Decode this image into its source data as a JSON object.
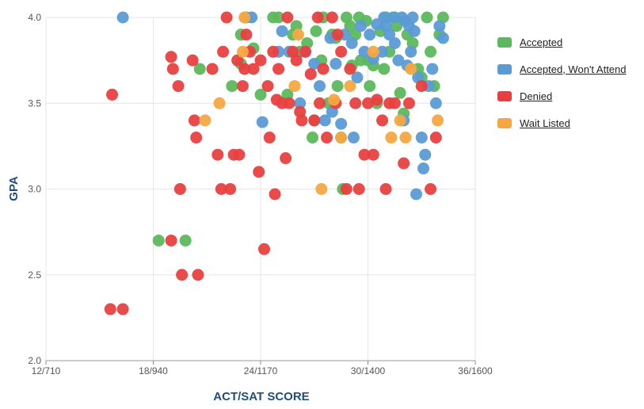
{
  "chart_data": {
    "type": "scatter",
    "title": "",
    "xlabel": "ACT/SAT SCORE",
    "ylabel": "GPA",
    "xlim": [
      12,
      36
    ],
    "ylim": [
      2.0,
      4.0
    ],
    "x_tick_labels": [
      "12/710",
      "18/940",
      "24/1170",
      "30/1400",
      "36/1600"
    ],
    "x_tick_values": [
      12,
      18,
      24,
      30,
      36
    ],
    "y_tick_labels": [
      "2.0",
      "2.5",
      "3.0",
      "3.5",
      "4.0"
    ],
    "y_tick_values": [
      2.0,
      2.5,
      3.0,
      3.5,
      4.0
    ],
    "grid": true,
    "legend_position": "right",
    "series": [
      {
        "name": "Accepted",
        "color": "#5cb85c",
        "points": [
          [
            18.3,
            2.7
          ],
          [
            19.8,
            2.7
          ],
          [
            20.6,
            3.7
          ],
          [
            22.4,
            3.6
          ],
          [
            22.9,
            3.9
          ],
          [
            22.9,
            3.73
          ],
          [
            23.2,
            4.0
          ],
          [
            23.6,
            3.82
          ],
          [
            24.0,
            3.55
          ],
          [
            24.7,
            4.0
          ],
          [
            25.0,
            4.0
          ],
          [
            25.5,
            3.55
          ],
          [
            25.8,
            3.9
          ],
          [
            26.2,
            3.8
          ],
          [
            26.6,
            3.85
          ],
          [
            26.9,
            3.3
          ],
          [
            27.1,
            3.92
          ],
          [
            27.4,
            3.75
          ],
          [
            27.5,
            4.0
          ],
          [
            27.8,
            3.5
          ],
          [
            28.2,
            3.88
          ],
          [
            28.3,
            3.6
          ],
          [
            28.5,
            3.3
          ],
          [
            28.6,
            3.0
          ],
          [
            28.8,
            4.0
          ],
          [
            29.1,
            3.72
          ],
          [
            29.3,
            3.9
          ],
          [
            29.5,
            4.0
          ],
          [
            29.6,
            3.75
          ],
          [
            29.9,
            3.98
          ],
          [
            30.0,
            3.75
          ],
          [
            30.3,
            3.72
          ],
          [
            30.5,
            3.5
          ],
          [
            30.7,
            3.92
          ],
          [
            30.9,
            3.7
          ],
          [
            31.2,
            3.8
          ],
          [
            31.5,
            4.0
          ],
          [
            31.8,
            3.56
          ],
          [
            32.0,
            3.44
          ],
          [
            32.2,
            3.9
          ],
          [
            32.5,
            3.85
          ],
          [
            32.8,
            3.7
          ],
          [
            33.0,
            3.65
          ],
          [
            33.3,
            4.0
          ],
          [
            33.5,
            3.8
          ],
          [
            33.7,
            3.6
          ],
          [
            34.0,
            3.9
          ],
          [
            34.2,
            4.0
          ],
          [
            31.6,
            3.95
          ],
          [
            28.0,
            3.9
          ],
          [
            26.0,
            3.95
          ],
          [
            30.1,
            3.6
          ],
          [
            31.0,
            4.0
          ],
          [
            27.0,
            3.4
          ],
          [
            29.0,
            3.95
          ]
        ]
      },
      {
        "name": "Accepted, Won't Attend",
        "color": "#5b9bd5",
        "points": [
          [
            16.3,
            4.0
          ],
          [
            23.5,
            4.0
          ],
          [
            24.1,
            3.39
          ],
          [
            25.0,
            3.8
          ],
          [
            25.2,
            3.92
          ],
          [
            25.6,
            3.8
          ],
          [
            26.2,
            3.5
          ],
          [
            26.5,
            3.8
          ],
          [
            27.0,
            3.73
          ],
          [
            27.3,
            3.6
          ],
          [
            27.6,
            3.4
          ],
          [
            28.0,
            3.45
          ],
          [
            28.2,
            3.73
          ],
          [
            28.5,
            3.38
          ],
          [
            28.7,
            3.9
          ],
          [
            29.1,
            3.85
          ],
          [
            29.4,
            3.65
          ],
          [
            29.6,
            3.95
          ],
          [
            29.8,
            3.8
          ],
          [
            30.1,
            3.9
          ],
          [
            30.3,
            3.76
          ],
          [
            30.5,
            3.96
          ],
          [
            30.8,
            3.8
          ],
          [
            31.0,
            3.95
          ],
          [
            31.2,
            3.9
          ],
          [
            31.5,
            3.85
          ],
          [
            31.7,
            3.75
          ],
          [
            32.0,
            3.4
          ],
          [
            32.2,
            3.72
          ],
          [
            32.4,
            3.8
          ],
          [
            32.6,
            3.92
          ],
          [
            32.8,
            3.65
          ],
          [
            33.0,
            3.3
          ],
          [
            33.1,
            3.12
          ],
          [
            33.2,
            3.2
          ],
          [
            33.4,
            3.6
          ],
          [
            33.6,
            3.7
          ],
          [
            33.8,
            3.5
          ],
          [
            34.0,
            3.95
          ],
          [
            34.2,
            3.88
          ],
          [
            32.7,
            2.97
          ],
          [
            31.9,
            4.0
          ],
          [
            32.1,
            3.98
          ],
          [
            32.3,
            3.95
          ],
          [
            32.5,
            4.0
          ],
          [
            31.4,
            4.0
          ],
          [
            30.9,
            4.0
          ],
          [
            27.9,
            3.88
          ],
          [
            29.2,
            3.3
          ]
        ]
      },
      {
        "name": "Denied",
        "color": "#e84040",
        "points": [
          [
            15.6,
            2.3
          ],
          [
            16.3,
            2.3
          ],
          [
            15.7,
            3.55
          ],
          [
            19.0,
            2.7
          ],
          [
            19.0,
            3.77
          ],
          [
            19.1,
            3.7
          ],
          [
            19.4,
            3.6
          ],
          [
            19.5,
            3.0
          ],
          [
            19.6,
            2.5
          ],
          [
            20.2,
            3.75
          ],
          [
            20.3,
            3.4
          ],
          [
            20.4,
            3.3
          ],
          [
            20.5,
            2.5
          ],
          [
            21.3,
            3.7
          ],
          [
            21.6,
            3.2
          ],
          [
            21.8,
            3.0
          ],
          [
            21.9,
            3.8
          ],
          [
            22.1,
            4.0
          ],
          [
            22.3,
            3.0
          ],
          [
            22.5,
            3.2
          ],
          [
            22.7,
            3.75
          ],
          [
            22.8,
            3.2
          ],
          [
            23.0,
            3.6
          ],
          [
            23.2,
            3.9
          ],
          [
            23.4,
            3.8
          ],
          [
            23.6,
            3.7
          ],
          [
            23.9,
            3.1
          ],
          [
            24.0,
            3.75
          ],
          [
            24.2,
            2.65
          ],
          [
            24.5,
            3.3
          ],
          [
            24.7,
            3.8
          ],
          [
            24.8,
            2.97
          ],
          [
            24.9,
            3.52
          ],
          [
            25.0,
            3.7
          ],
          [
            25.2,
            3.5
          ],
          [
            25.4,
            3.18
          ],
          [
            25.6,
            3.5
          ],
          [
            25.8,
            3.8
          ],
          [
            26.0,
            3.75
          ],
          [
            26.3,
            3.4
          ],
          [
            26.5,
            3.8
          ],
          [
            26.8,
            3.67
          ],
          [
            27.0,
            3.4
          ],
          [
            27.3,
            3.5
          ],
          [
            27.5,
            3.7
          ],
          [
            27.7,
            3.3
          ],
          [
            28.0,
            4.0
          ],
          [
            28.2,
            3.5
          ],
          [
            28.5,
            3.8
          ],
          [
            28.8,
            3.0
          ],
          [
            29.0,
            3.7
          ],
          [
            29.3,
            3.5
          ],
          [
            29.5,
            3.0
          ],
          [
            29.8,
            3.2
          ],
          [
            30.0,
            3.5
          ],
          [
            30.3,
            3.2
          ],
          [
            30.5,
            3.52
          ],
          [
            30.8,
            3.4
          ],
          [
            31.0,
            3.0
          ],
          [
            31.2,
            3.5
          ],
          [
            31.5,
            3.5
          ],
          [
            32.0,
            3.15
          ],
          [
            32.3,
            3.5
          ],
          [
            33.0,
            3.6
          ],
          [
            33.5,
            3.0
          ],
          [
            33.8,
            3.3
          ],
          [
            26.2,
            3.45
          ],
          [
            28.3,
            3.9
          ],
          [
            24.4,
            3.6
          ],
          [
            23.1,
            3.7
          ],
          [
            25.5,
            4.0
          ],
          [
            27.2,
            4.0
          ]
        ]
      },
      {
        "name": "Wait Listed",
        "color": "#f5a742",
        "points": [
          [
            20.9,
            3.4
          ],
          [
            21.7,
            3.5
          ],
          [
            23.1,
            4.0
          ],
          [
            25.9,
            3.6
          ],
          [
            26.1,
            3.9
          ],
          [
            27.4,
            3.0
          ],
          [
            28.1,
            3.52
          ],
          [
            28.5,
            3.3
          ],
          [
            29.0,
            3.6
          ],
          [
            30.3,
            3.8
          ],
          [
            31.3,
            3.3
          ],
          [
            31.8,
            3.4
          ],
          [
            32.1,
            3.3
          ],
          [
            33.9,
            3.4
          ],
          [
            32.4,
            3.7
          ],
          [
            23.0,
            3.8
          ]
        ]
      }
    ]
  }
}
